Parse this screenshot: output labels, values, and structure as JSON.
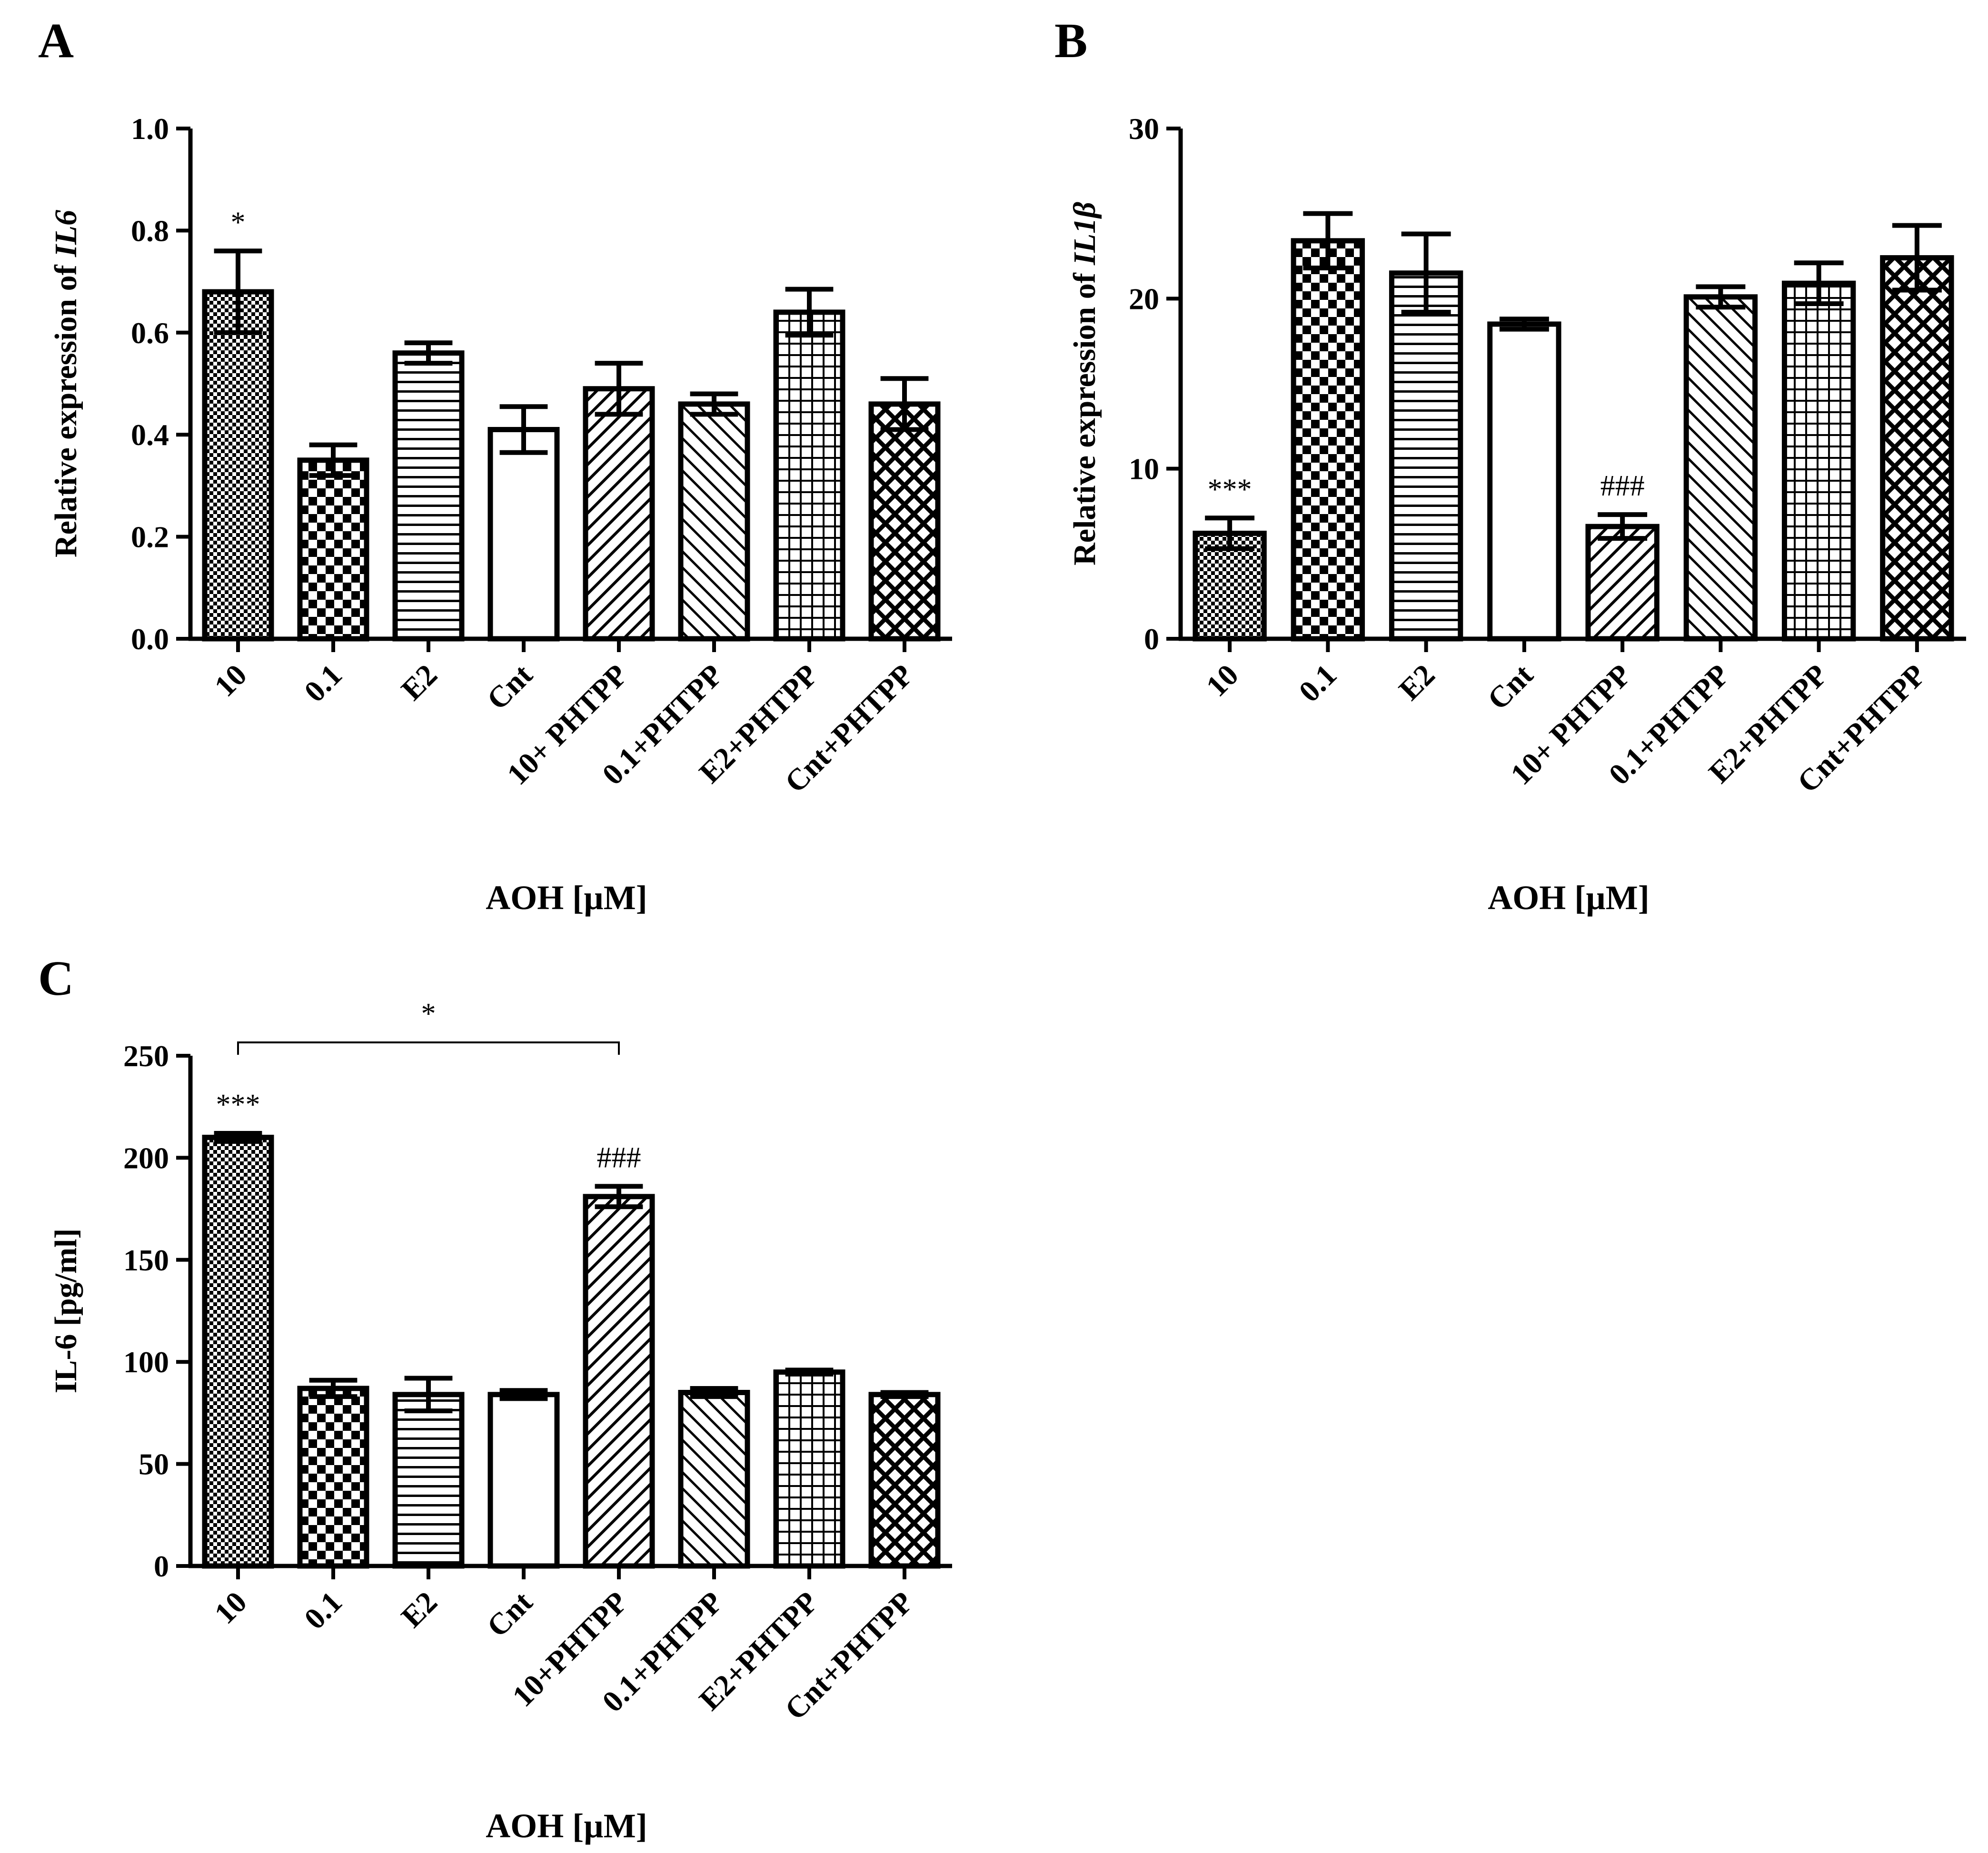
{
  "chart_data": [
    {
      "panel": "A",
      "type": "bar",
      "title": "",
      "ylabel": "Relative expression of",
      "ylabel_italic": "IL6",
      "xlabel": "AOH [µM]",
      "ylim": [
        0,
        1.0
      ],
      "yticks": [
        "0.0",
        "0.2",
        "0.4",
        "0.6",
        "0.8",
        "1.0"
      ],
      "ytick_values": [
        0,
        0.2,
        0.4,
        0.6,
        0.8,
        1.0
      ],
      "categories": [
        "10",
        "0.1",
        "E2",
        "Cnt",
        "10+ PHTPP",
        "0.1+PHTPP",
        "E2+PHTPP",
        "Cnt+PHTPP"
      ],
      "values": [
        0.68,
        0.35,
        0.56,
        0.41,
        0.49,
        0.46,
        0.64,
        0.46
      ],
      "errors": [
        0.08,
        0.03,
        0.02,
        0.045,
        0.05,
        0.02,
        0.045,
        0.05
      ],
      "patterns": [
        "fine-check",
        "checker",
        "hlines",
        "none",
        "diag-up",
        "diag-down",
        "grid",
        "crosshatch"
      ],
      "annotations": [
        {
          "category": 0,
          "text": "*"
        }
      ]
    },
    {
      "panel": "B",
      "type": "bar",
      "title": "",
      "ylabel": "Relative expression of",
      "ylabel_italic": "IL1β",
      "xlabel": "AOH [µM]",
      "ylim": [
        0,
        30
      ],
      "yticks": [
        "0",
        "10",
        "20",
        "30"
      ],
      "ytick_values": [
        0,
        10,
        20,
        30
      ],
      "categories": [
        "10",
        "0.1",
        "E2",
        "Cnt",
        "10+ PHTPP",
        "0.1+PHTPP",
        "E2+PHTPP",
        "Cnt+PHTPP"
      ],
      "values": [
        6.2,
        23.4,
        21.5,
        18.5,
        6.6,
        20.1,
        20.9,
        22.4
      ],
      "errors": [
        0.9,
        1.6,
        2.3,
        0.3,
        0.7,
        0.6,
        1.2,
        1.9
      ],
      "patterns": [
        "fine-check",
        "checker",
        "hlines",
        "none",
        "diag-up",
        "diag-down",
        "grid",
        "crosshatch"
      ],
      "annotations": [
        {
          "category": 0,
          "text": "***"
        },
        {
          "category": 4,
          "text": "###"
        }
      ]
    },
    {
      "panel": "C",
      "type": "bar",
      "title": "",
      "ylabel": "IL-6 [pg/ml]",
      "ylabel_italic": "",
      "xlabel": "AOH [µM]",
      "ylim": [
        0,
        250
      ],
      "yticks": [
        "0",
        "50",
        "100",
        "150",
        "200",
        "250"
      ],
      "ytick_values": [
        0,
        50,
        100,
        150,
        200,
        250
      ],
      "categories": [
        "10",
        "0.1",
        "E2",
        "Cnt",
        "10+PHTPP",
        "0.1+PHTPP",
        "E2+PHTPP",
        "Cnt+PHTPP"
      ],
      "values": [
        210,
        87,
        84,
        84,
        181,
        85,
        95,
        84
      ],
      "errors": [
        2,
        4,
        8,
        2,
        5,
        2,
        1,
        1
      ],
      "patterns": [
        "fine-check",
        "checker",
        "hlines",
        "none",
        "diag-up",
        "diag-down",
        "grid",
        "crosshatch"
      ],
      "annotations": [
        {
          "category": 0,
          "text": "***"
        },
        {
          "category": 4,
          "text": "###"
        }
      ],
      "bracket": {
        "from": 0,
        "to": 4,
        "text": "*"
      }
    }
  ]
}
